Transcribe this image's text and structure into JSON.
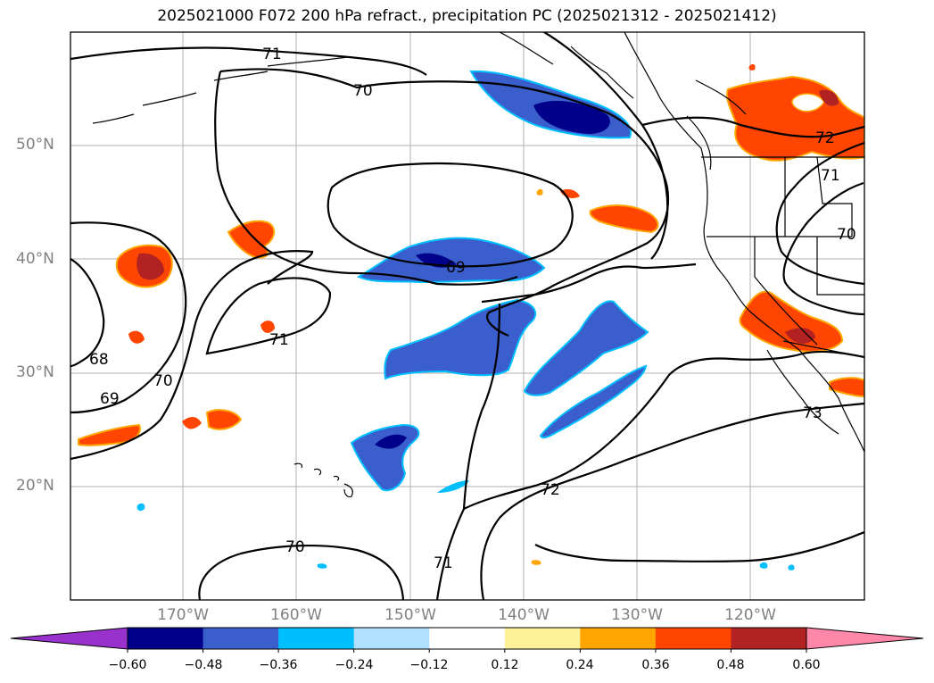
{
  "title": "2025021000 F072 200 hPa refract., precipitation PC (2025021312 - 2025021412)",
  "lat_labels": [
    "50°N",
    "40°N",
    "30°N",
    "20°N"
  ],
  "lon_labels": [
    "170°W",
    "160°W",
    "150°W",
    "140°W",
    "130°W",
    "120°W"
  ],
  "contour_labels": [
    "71",
    "70",
    "69",
    "71",
    "68",
    "69",
    "70",
    "72",
    "70",
    "71",
    "72",
    "71",
    "70",
    "73"
  ],
  "colorbar": {
    "ticks": [
      "−0.60",
      "−0.48",
      "−0.36",
      "−0.24",
      "−0.12",
      "0.12",
      "0.24",
      "0.36",
      "0.48",
      "0.60"
    ],
    "colors": [
      "#9932cc",
      "#00008b",
      "#3a5fcd",
      "#00bfff",
      "#b0e2ff",
      "#ffffff",
      "#fff09a",
      "#ffa500",
      "#ff4500",
      "#b22222",
      "#ff88aa"
    ]
  },
  "styles": {
    "grid": "#b0b0b0",
    "axis_label": "#808080",
    "contour": "#000000"
  }
}
